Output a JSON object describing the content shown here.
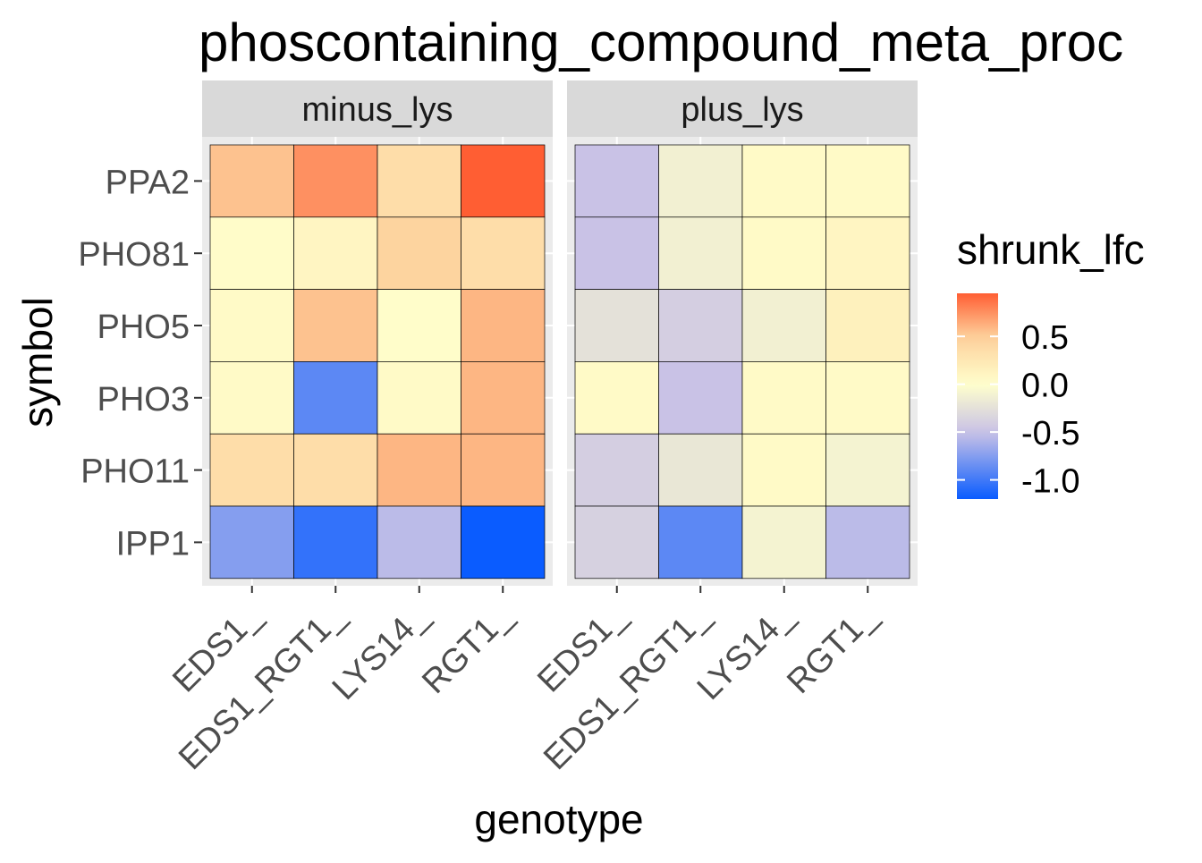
{
  "chart_data": {
    "type": "heatmap",
    "title": "phoscontaining_compound_meta_proc",
    "xlabel": "genotype",
    "ylabel": "symbol",
    "x_categories": [
      "EDS1_",
      "EDS1_RGT1_",
      "LYS14_",
      "RGT1_"
    ],
    "y_categories": [
      "PPA2",
      "PHO81",
      "PHO5",
      "PHO3",
      "PHO11",
      "IPP1"
    ],
    "facets": [
      {
        "name": "minus_lys",
        "values": [
          [
            0.55,
            0.75,
            0.35,
            0.95
          ],
          [
            0.03,
            0.1,
            0.45,
            0.35
          ],
          [
            0.05,
            0.55,
            0.02,
            0.6
          ],
          [
            0.05,
            -0.9,
            0.05,
            0.6
          ],
          [
            0.35,
            0.35,
            0.6,
            0.6
          ],
          [
            -0.75,
            -1.05,
            -0.55,
            -1.2
          ]
        ]
      },
      {
        "name": "plus_lys",
        "values": [
          [
            -0.5,
            -0.12,
            0.05,
            0.05
          ],
          [
            -0.5,
            -0.12,
            0.05,
            0.1
          ],
          [
            -0.25,
            -0.4,
            -0.12,
            0.15
          ],
          [
            0.05,
            -0.5,
            0.05,
            0.05
          ],
          [
            -0.4,
            -0.2,
            0.05,
            -0.1
          ],
          [
            -0.38,
            -0.9,
            -0.1,
            -0.55
          ]
        ]
      }
    ],
    "legend": {
      "title": "shrunk_lfc",
      "position": "right",
      "breaks": [
        0.5,
        0.0,
        -0.5,
        -1.0
      ],
      "break_labels": [
        "0.5",
        "0.0",
        "-0.5",
        "-1.0"
      ],
      "range": [
        -1.2,
        0.95
      ]
    },
    "colors": {
      "low": "#0a5cff",
      "mid_low": "#c9c2e6",
      "mid": "#ffffcc",
      "mid_high": "#fdcf9a",
      "high": "#ff5e33",
      "panel_background": "#ebebeb",
      "strip_background": "#d9d9d9",
      "grid": "#ffffff"
    }
  }
}
